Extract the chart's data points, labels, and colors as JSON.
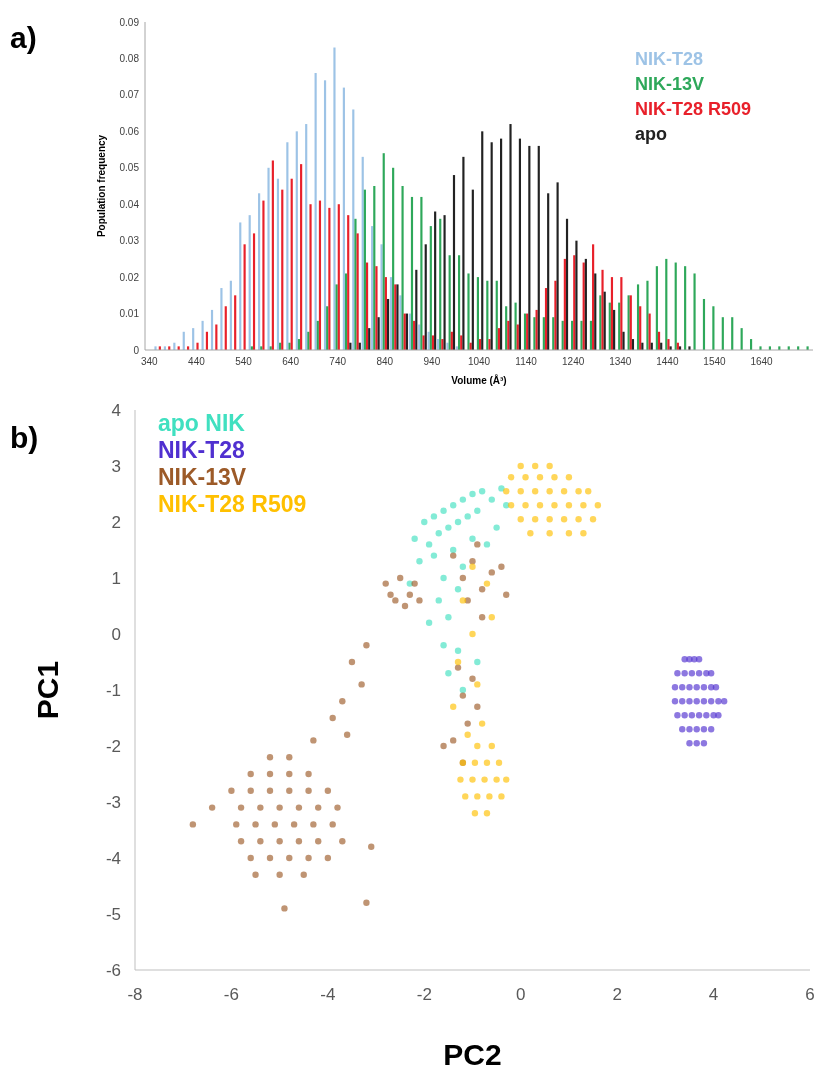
{
  "chart_data": [
    {
      "type": "bar",
      "title": "a)",
      "xlabel": "Volume (Å³)",
      "ylabel": "Population frequency",
      "legend": "top right",
      "categories": [
        "340",
        null,
        null,
        null,
        null,
        "440",
        null,
        null,
        null,
        null,
        "540",
        null,
        null,
        null,
        null,
        "640",
        null,
        null,
        null,
        null,
        "740",
        null,
        null,
        null,
        null,
        "840",
        null,
        null,
        null,
        null,
        "940",
        null,
        null,
        null,
        null,
        "1040",
        null,
        null,
        null,
        null,
        "1140",
        null,
        null,
        null,
        null,
        "1240",
        null,
        null,
        null,
        null,
        "1340",
        null,
        null,
        null,
        null,
        "1440",
        null,
        null,
        null,
        null,
        "1540",
        null,
        null,
        null,
        null,
        "1640",
        null,
        null,
        null,
        null,
        null
      ],
      "ylim": [
        0,
        0.09
      ],
      "yticks": [
        0,
        0.01,
        0.02,
        0.03,
        0.04,
        0.05,
        0.06,
        0.07,
        0.08,
        0.09
      ],
      "series": [
        {
          "name": "NIK-T28",
          "color": "#9dc3e6",
          "values": [
            0,
            0.001,
            0.001,
            0.002,
            0.005,
            0.006,
            0.008,
            0.011,
            0.017,
            0.019,
            0.035,
            0.037,
            0.043,
            0.05,
            0.047,
            0.057,
            0.06,
            0.062,
            0.076,
            0.074,
            0.083,
            0.072,
            0.066,
            0.053,
            0.034,
            0.029,
            0.02,
            0.015,
            0.01,
            0.007,
            0.005,
            0.003,
            0.002,
            0.001,
            0,
            0,
            0,
            0,
            0,
            0,
            0,
            0,
            0,
            0,
            0,
            0,
            0,
            0,
            0,
            0,
            0,
            0,
            0,
            0,
            0,
            0,
            0,
            0,
            0,
            0,
            0,
            0,
            0,
            0,
            0,
            0,
            0,
            0,
            0,
            0,
            0
          ]
        },
        {
          "name": "NIK-13V",
          "color": "#2ea85a",
          "values": [
            0,
            0,
            0,
            0,
            0,
            0,
            0,
            0,
            0,
            0,
            0,
            0.001,
            0.001,
            0.001,
            0.002,
            0.002,
            0.003,
            0.005,
            0.008,
            0.012,
            0.018,
            0.021,
            0.036,
            0.044,
            0.045,
            0.054,
            0.05,
            0.045,
            0.042,
            0.042,
            0.034,
            0.036,
            0.026,
            0.026,
            0.021,
            0.02,
            0.019,
            0.019,
            0.012,
            0.013,
            0.01,
            0.009,
            0.009,
            0.009,
            0.008,
            0.008,
            0.008,
            0.008,
            0.015,
            0.013,
            0.013,
            0.015,
            0.018,
            0.019,
            0.023,
            0.025,
            0.024,
            0.023,
            0.021,
            0.014,
            0.012,
            0.009,
            0.009,
            0.006,
            0.003,
            0.001,
            0.001,
            0.001,
            0.001,
            0.001,
            0.001
          ]
        },
        {
          "name": "NIK-T28 R509",
          "color": "#e8202a",
          "values": [
            0,
            0.001,
            0.001,
            0.001,
            0.001,
            0.002,
            0.005,
            0.007,
            0.012,
            0.015,
            0.029,
            0.032,
            0.041,
            0.052,
            0.044,
            0.047,
            0.051,
            0.04,
            0.041,
            0.039,
            0.04,
            0.037,
            0.032,
            0.024,
            0.023,
            0.02,
            0.018,
            0.01,
            0.008,
            0.004,
            0.004,
            0.003,
            0.005,
            0.004,
            0.002,
            0.003,
            0.003,
            0.006,
            0.008,
            0.007,
            0.01,
            0.011,
            0.017,
            0.019,
            0.025,
            0.026,
            0.024,
            0.029,
            0.022,
            0.02,
            0.02,
            0.015,
            0.012,
            0.01,
            0.005,
            0.003,
            0.002,
            0,
            0,
            0,
            0,
            0,
            0,
            0,
            0,
            0,
            0,
            0,
            0,
            0,
            0
          ]
        },
        {
          "name": "apo",
          "color": "#222222",
          "values": [
            0,
            0,
            0,
            0,
            0,
            0,
            0,
            0,
            0,
            0,
            0,
            0,
            0,
            0,
            0,
            0,
            0,
            0,
            0,
            0,
            0,
            0.002,
            0.002,
            0.006,
            0.009,
            0.014,
            0.018,
            0.01,
            0.022,
            0.029,
            0.038,
            0.037,
            0.048,
            0.053,
            0.044,
            0.06,
            0.057,
            0.058,
            0.062,
            0.058,
            0.056,
            0.056,
            0.043,
            0.046,
            0.036,
            0.03,
            0.025,
            0.021,
            0.016,
            0.011,
            0.005,
            0.003,
            0.002,
            0.002,
            0.002,
            0.001,
            0.001,
            0.001,
            0,
            0,
            0,
            0,
            0,
            0,
            0,
            0,
            0,
            0,
            0,
            0,
            0
          ]
        }
      ]
    },
    {
      "type": "scatter",
      "title": "b)",
      "xlabel": "PC2",
      "ylabel": "PC1",
      "legend": "top left",
      "marker": "circle",
      "xlim": [
        -8,
        6
      ],
      "xticks": [
        -8,
        -6,
        -4,
        -2,
        0,
        2,
        4,
        6
      ],
      "ylim": [
        -6,
        4
      ],
      "yticks": [
        -6,
        -5,
        -4,
        -3,
        -2,
        -1,
        0,
        1,
        2,
        3,
        4
      ],
      "series": [
        {
          "name": "apo NIK",
          "color": "#40e0c0",
          "x": [
            -2.2,
            -2.0,
            -1.9,
            -1.8,
            -1.7,
            -1.6,
            -1.5,
            -1.4,
            -1.3,
            -1.2,
            -1.1,
            -1.0,
            -0.9,
            -0.8,
            -0.6,
            -0.4,
            -0.3,
            -2.1,
            -1.8,
            -1.6,
            -1.4,
            -1.2,
            -1.7,
            -1.5,
            -1.3,
            -1.9,
            -1.6,
            -1.3,
            -1.5,
            -1.2,
            -0.9,
            -0.7,
            -0.5,
            -2.3,
            -1.0
          ],
          "values": [
            1.7,
            2.0,
            1.6,
            2.1,
            1.8,
            2.2,
            1.9,
            2.3,
            2.0,
            2.4,
            2.1,
            2.5,
            2.2,
            2.55,
            2.4,
            2.6,
            2.3,
            1.3,
            1.4,
            1.0,
            1.5,
            1.2,
            0.6,
            0.3,
            0.8,
            0.2,
            -0.2,
            -0.3,
            -0.7,
            -1.0,
            -0.5,
            1.6,
            1.9,
            0.9,
            1.7
          ]
        },
        {
          "name": "NIK-T28",
          "color": "#5030d0",
          "x": [
            3.4,
            3.5,
            3.6,
            3.7,
            3.25,
            3.4,
            3.55,
            3.7,
            3.85,
            3.95,
            3.2,
            3.35,
            3.5,
            3.65,
            3.8,
            3.95,
            4.05,
            3.2,
            3.35,
            3.5,
            3.65,
            3.8,
            3.95,
            4.1,
            4.22,
            3.25,
            3.4,
            3.55,
            3.7,
            3.85,
            4.0,
            4.1,
            3.35,
            3.5,
            3.65,
            3.8,
            3.95,
            3.5,
            3.65,
            3.8
          ],
          "values": [
            -0.45,
            -0.45,
            -0.45,
            -0.45,
            -0.7,
            -0.7,
            -0.7,
            -0.7,
            -0.7,
            -0.7,
            -0.95,
            -0.95,
            -0.95,
            -0.95,
            -0.95,
            -0.95,
            -0.95,
            -1.2,
            -1.2,
            -1.2,
            -1.2,
            -1.2,
            -1.2,
            -1.2,
            -1.2,
            -1.45,
            -1.45,
            -1.45,
            -1.45,
            -1.45,
            -1.45,
            -1.45,
            -1.7,
            -1.7,
            -1.7,
            -1.7,
            -1.7,
            -1.95,
            -1.95,
            -1.95
          ]
        },
        {
          "name": "NIK-13V",
          "color": "#9c5a28",
          "x": [
            -2.8,
            -2.6,
            -2.5,
            -2.3,
            -2.2,
            -2.4,
            -2.7,
            -2.1,
            -1.4,
            -1.2,
            -1.0,
            -0.8,
            -0.6,
            -0.4,
            -1.1,
            -0.8,
            -0.3,
            -0.9,
            -1.3,
            -1.0,
            -1.2,
            -0.9,
            -1.1,
            -1.4,
            -1.2,
            -1.6,
            -3.2,
            -3.5,
            -3.3,
            -3.7,
            -3.9,
            -4.3,
            -3.6,
            -5.2,
            -4.8,
            -5.6,
            -5.2,
            -4.8,
            -4.4,
            -6.0,
            -5.6,
            -5.2,
            -4.8,
            -4.4,
            -4.0,
            -6.4,
            -5.8,
            -5.4,
            -5.0,
            -4.6,
            -4.2,
            -3.8,
            -5.9,
            -5.5,
            -5.1,
            -4.7,
            -4.3,
            -3.9,
            -5.8,
            -5.4,
            -5.0,
            -4.6,
            -4.2,
            -3.7,
            -5.6,
            -5.2,
            -4.8,
            -4.4,
            -4.0,
            -5.5,
            -5.0,
            -4.5,
            -6.8,
            -4.9,
            -3.2,
            -3.1
          ],
          "values": [
            0.9,
            0.6,
            1.0,
            0.7,
            0.9,
            0.5,
            0.7,
            0.6,
            1.4,
            1.0,
            1.3,
            0.8,
            1.1,
            1.2,
            0.6,
            0.3,
            0.7,
            1.6,
            -0.6,
            -0.8,
            -1.1,
            -1.3,
            -1.6,
            -1.9,
            -2.3,
            -2.0,
            -0.2,
            -0.5,
            -0.9,
            -1.2,
            -1.5,
            -1.9,
            -1.8,
            -2.2,
            -2.2,
            -2.5,
            -2.5,
            -2.5,
            -2.5,
            -2.8,
            -2.8,
            -2.8,
            -2.8,
            -2.8,
            -2.8,
            -3.1,
            -3.1,
            -3.1,
            -3.1,
            -3.1,
            -3.1,
            -3.1,
            -3.4,
            -3.4,
            -3.4,
            -3.4,
            -3.4,
            -3.4,
            -3.7,
            -3.7,
            -3.7,
            -3.7,
            -3.7,
            -3.7,
            -4.0,
            -4.0,
            -4.0,
            -4.0,
            -4.0,
            -4.3,
            -4.3,
            -4.3,
            -3.4,
            -4.9,
            -4.8,
            -3.8
          ]
        },
        {
          "name": "NIK-T28 R509",
          "color": "#ffc000",
          "x": [
            0.0,
            0.3,
            0.6,
            -0.2,
            0.1,
            0.4,
            0.7,
            1.0,
            -0.3,
            0.0,
            0.3,
            0.6,
            0.9,
            1.2,
            1.4,
            -0.2,
            0.1,
            0.4,
            0.7,
            1.0,
            1.3,
            1.6,
            0.0,
            0.3,
            0.6,
            0.9,
            1.2,
            1.5,
            0.2,
            0.6,
            1.0,
            1.3,
            -0.9,
            -0.6,
            -1.2,
            -0.95,
            -0.7,
            -0.45,
            -1.25,
            -1.0,
            -0.75,
            -0.5,
            -0.3,
            -1.15,
            -0.9,
            -0.65,
            -0.4,
            -0.95,
            -0.7,
            -1.0,
            -0.7,
            -1.2,
            -0.6,
            -1.0,
            -1.3,
            -0.9,
            -1.4,
            -0.8,
            -1.1
          ],
          "values": [
            3.0,
            3.0,
            3.0,
            2.8,
            2.8,
            2.8,
            2.8,
            2.8,
            2.55,
            2.55,
            2.55,
            2.55,
            2.55,
            2.55,
            2.55,
            2.3,
            2.3,
            2.3,
            2.3,
            2.3,
            2.3,
            2.3,
            2.05,
            2.05,
            2.05,
            2.05,
            2.05,
            2.05,
            1.8,
            1.8,
            1.8,
            1.8,
            -2.0,
            -2.0,
            -2.3,
            -2.3,
            -2.3,
            -2.3,
            -2.6,
            -2.6,
            -2.6,
            -2.6,
            -2.6,
            -2.9,
            -2.9,
            -2.9,
            -2.9,
            -3.2,
            -3.2,
            1.2,
            0.9,
            0.6,
            0.3,
            0.0,
            -0.5,
            -0.9,
            -1.3,
            -1.6,
            -1.8
          ]
        }
      ]
    }
  ]
}
